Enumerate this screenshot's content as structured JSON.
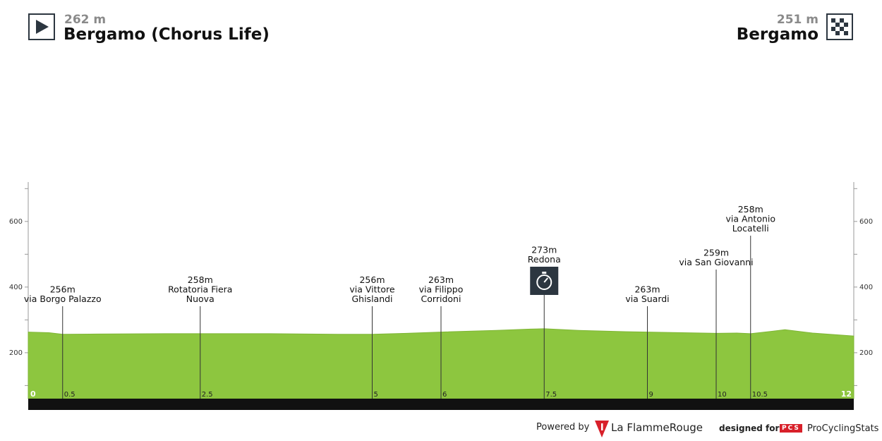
{
  "header": {
    "start": {
      "altitude": "262 m",
      "place": "Bergamo (Chorus Life)"
    },
    "finish": {
      "altitude": "251 m",
      "place": "Bergamo"
    }
  },
  "footer": {
    "powered_by": "Powered by",
    "brand_prefix": "La Flamme",
    "brand_suffix": "Rouge",
    "designed_for": "designed for",
    "pcs_badge": "PCS",
    "pcs_name": "ProCyclingStats"
  },
  "colors": {
    "profile_fill": "#8dc63f",
    "road_band": "#111111",
    "axis": "#999999",
    "marker": "#333333",
    "icon_bg": "#2c3640"
  },
  "chart_data": {
    "type": "area",
    "ylim": [
      60,
      720
    ],
    "yticks": [
      200,
      400,
      600
    ],
    "xlim": [
      0,
      12
    ],
    "profile_x": [
      0,
      0.3,
      0.5,
      1.0,
      2.0,
      2.5,
      3.5,
      4.5,
      5.0,
      5.5,
      6.0,
      6.8,
      7.3,
      7.5,
      8.0,
      8.7,
      9.0,
      9.5,
      10.0,
      10.3,
      10.5,
      10.8,
      11.0,
      11.4,
      12.0
    ],
    "profile_y": [
      263,
      261,
      256,
      257,
      258,
      258,
      258,
      256,
      256,
      259,
      263,
      268,
      272,
      273,
      268,
      264,
      263,
      261,
      259,
      260,
      258,
      265,
      270,
      260,
      251
    ],
    "points": [
      {
        "km": "0.5",
        "altitude": "256m",
        "label": [
          "via Borgo Palazzo"
        ],
        "x": 0.5,
        "y": 256
      },
      {
        "km": "2.5",
        "altitude": "258m",
        "label": [
          "Rotatoria Fiera",
          "Nuova"
        ],
        "x": 2.5,
        "y": 258
      },
      {
        "km": "5",
        "altitude": "256m",
        "label": [
          "via Vittore",
          "Ghislandi"
        ],
        "x": 5,
        "y": 256
      },
      {
        "km": "6",
        "altitude": "263m",
        "label": [
          "via Filippo",
          "Corridoni"
        ],
        "x": 6,
        "y": 263
      },
      {
        "km": "7.5",
        "altitude": "273m",
        "label": [
          "Redona"
        ],
        "x": 7.5,
        "y": 273,
        "icon": "stopwatch-icon"
      },
      {
        "km": "9",
        "altitude": "263m",
        "label": [
          "via Suardi"
        ],
        "x": 9,
        "y": 263
      },
      {
        "km": "10",
        "altitude": "259m",
        "label": [
          "via San Giovanni"
        ],
        "x": 10,
        "y": 259
      },
      {
        "km": "10.5",
        "altitude": "258m",
        "label": [
          "via Antonio",
          "Locatelli"
        ],
        "x": 10.5,
        "y": 258
      }
    ],
    "start_km_label": "0",
    "end_km_label": "12"
  }
}
